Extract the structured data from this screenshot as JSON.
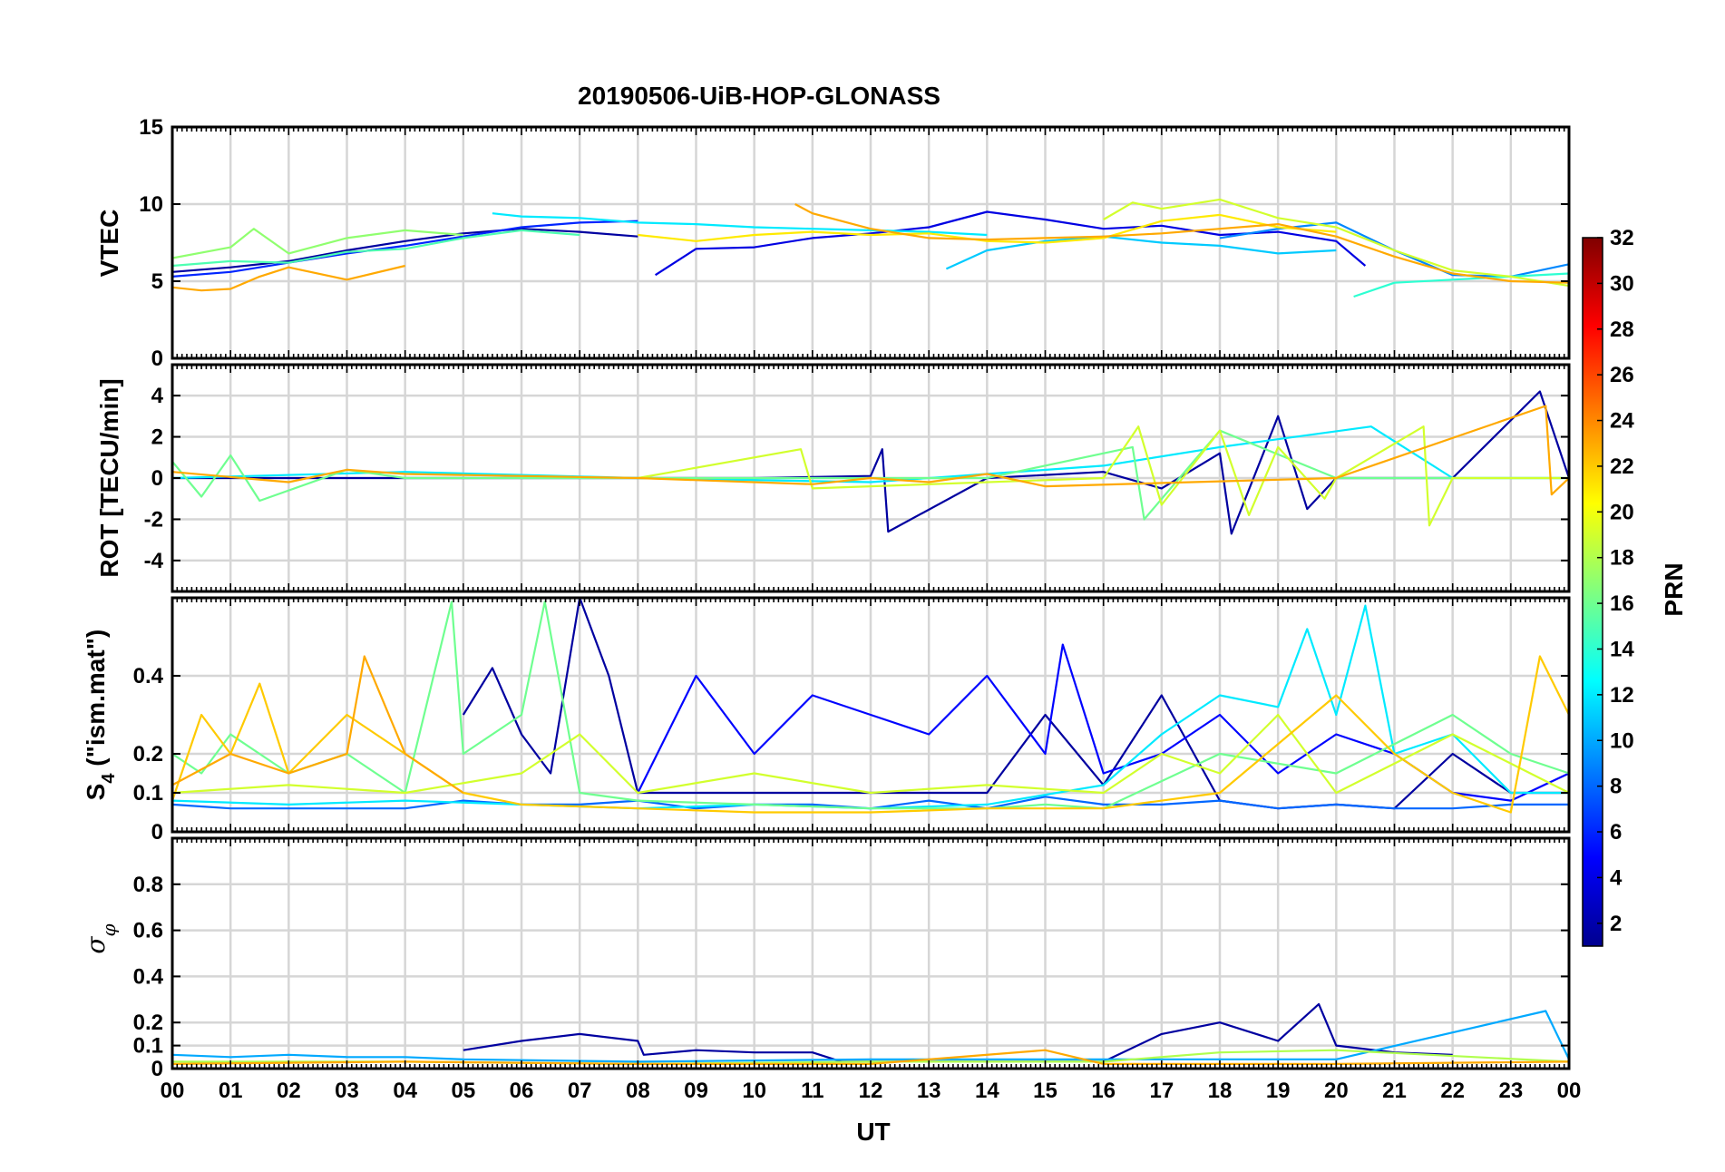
{
  "chart_data": {
    "type": "line",
    "title": "20190506-UiB-HOP-GLONASS",
    "xlabel": "UT",
    "x_ticks": [
      "00",
      "01",
      "02",
      "03",
      "04",
      "05",
      "06",
      "07",
      "08",
      "09",
      "10",
      "11",
      "12",
      "13",
      "14",
      "15",
      "16",
      "17",
      "18",
      "19",
      "20",
      "21",
      "22",
      "23",
      "00"
    ],
    "xlim_hours": [
      0,
      24
    ],
    "grid": true,
    "colorbar": {
      "label": "PRN",
      "range": [
        1,
        32
      ],
      "ticks": [
        "2",
        "4",
        "6",
        "8",
        "10",
        "12",
        "14",
        "16",
        "18",
        "20",
        "22",
        "24",
        "26",
        "28",
        "30",
        "32"
      ],
      "colormap": "jet"
    },
    "panels": [
      {
        "id": "vtec",
        "ylabel": "VTEC",
        "ylim": [
          0,
          15
        ],
        "yticks": [
          "0",
          "5",
          "10",
          "15"
        ],
        "series": [
          {
            "prn": 2,
            "x": [
              0,
              1,
              2,
              3,
              4,
              5,
              6,
              7,
              8
            ],
            "values": [
              5.6,
              5.9,
              6.3,
              7.0,
              7.6,
              8.1,
              8.4,
              8.2,
              7.9
            ]
          },
          {
            "prn": 4,
            "x": [
              8.3,
              9,
              10,
              11,
              12,
              13,
              14,
              15,
              16,
              17,
              18,
              19,
              20,
              20.5
            ],
            "values": [
              5.4,
              7.1,
              7.2,
              7.8,
              8.1,
              8.5,
              9.5,
              9.0,
              8.4,
              8.6,
              8.0,
              8.2,
              7.6,
              6.0
            ]
          },
          {
            "prn": 6,
            "x": [
              0,
              1,
              2,
              3,
              4,
              5,
              6,
              7,
              8
            ],
            "values": [
              5.3,
              5.6,
              6.2,
              6.8,
              7.3,
              7.9,
              8.5,
              8.8,
              8.9
            ]
          },
          {
            "prn": 9,
            "x": [
              18,
              19,
              20,
              21,
              22,
              23,
              24
            ],
            "values": [
              7.8,
              8.4,
              8.8,
              7.0,
              5.4,
              5.3,
              6.1
            ]
          },
          {
            "prn": 11,
            "x": [
              13.3,
              14,
              15,
              16,
              17,
              18,
              19,
              20
            ],
            "values": [
              5.8,
              7.0,
              7.6,
              7.9,
              7.5,
              7.3,
              6.8,
              7.0
            ]
          },
          {
            "prn": 12,
            "x": [
              5.5,
              6,
              7,
              8,
              9,
              10,
              11,
              12,
              13,
              14
            ],
            "values": [
              9.4,
              9.2,
              9.1,
              8.8,
              8.7,
              8.5,
              8.4,
              8.3,
              8.2,
              8.0
            ]
          },
          {
            "prn": 14,
            "x": [
              20.3,
              21,
              22,
              23,
              24
            ],
            "values": [
              4.0,
              4.9,
              5.1,
              5.3,
              5.5
            ]
          },
          {
            "prn": 15,
            "x": [
              0,
              1,
              2,
              3,
              4,
              5,
              6,
              7
            ],
            "values": [
              6.0,
              6.3,
              6.2,
              6.9,
              7.1,
              7.8,
              8.3,
              8.0
            ]
          },
          {
            "prn": 17,
            "x": [
              0,
              1,
              1.4,
              2,
              3,
              4,
              5
            ],
            "values": [
              6.5,
              7.2,
              8.4,
              6.8,
              7.8,
              8.3,
              8.0
            ]
          },
          {
            "prn": 19,
            "x": [
              16,
              16.5,
              17,
              18,
              19,
              20,
              21,
              22,
              23,
              24
            ],
            "values": [
              9.0,
              10.1,
              9.7,
              10.3,
              9.1,
              8.5,
              7.0,
              5.7,
              5.3,
              4.7
            ]
          },
          {
            "prn": 21,
            "x": [
              8,
              9,
              10,
              11,
              12,
              13,
              14,
              15,
              16,
              17,
              18,
              19,
              20
            ],
            "values": [
              8.0,
              7.6,
              8.0,
              8.2,
              8.0,
              8.1,
              7.6,
              7.5,
              7.8,
              8.9,
              9.3,
              8.5,
              8.2
            ]
          },
          {
            "prn": 23,
            "x": [
              0,
              0.5,
              1,
              1.5,
              2,
              3,
              4
            ],
            "values": [
              4.6,
              4.4,
              4.5,
              5.3,
              5.9,
              5.1,
              6.0
            ]
          },
          {
            "prn": 23,
            "x": [
              10.7,
              11,
              12,
              13,
              14,
              15,
              16,
              17,
              18,
              19,
              20,
              21,
              22,
              23,
              24
            ],
            "values": [
              10.0,
              9.4,
              8.4,
              7.8,
              7.7,
              7.8,
              7.9,
              8.1,
              8.4,
              8.7,
              7.9,
              6.6,
              5.5,
              5.0,
              4.9
            ]
          }
        ]
      },
      {
        "id": "rot",
        "ylabel": "ROT [TECU/min]",
        "ylim": [
          -5.5,
          5.5
        ],
        "yticks": [
          "4",
          "2",
          "0",
          "-2",
          "-4"
        ],
        "series": [
          {
            "prn": 2,
            "x": [
              0,
              2,
              4,
              6,
              8,
              10,
              12,
              12.2,
              12.3,
              14,
              16,
              17,
              18,
              18.2,
              19,
              19.5,
              20,
              22,
              23.5,
              24
            ],
            "values": [
              0,
              0,
              0,
              0,
              0,
              0,
              0.1,
              1.4,
              -2.6,
              0,
              0.3,
              -0.5,
              1.2,
              -2.7,
              3.0,
              -1.5,
              0,
              0,
              4.2,
              0
            ]
          },
          {
            "prn": 12,
            "x": [
              0,
              4,
              8,
              12,
              16,
              18,
              20.6,
              22,
              24
            ],
            "values": [
              0,
              0.3,
              0,
              -0.2,
              0.6,
              1.5,
              2.5,
              0,
              0
            ]
          },
          {
            "prn": 16,
            "x": [
              0,
              0.5,
              1,
              1.5,
              3,
              4,
              6,
              8,
              10,
              14,
              16.5,
              16.7,
              18,
              20,
              24
            ],
            "values": [
              0.8,
              -0.9,
              1.1,
              -1.1,
              0.4,
              0,
              0,
              0,
              0,
              0,
              1.5,
              -2.0,
              2.3,
              0,
              0
            ]
          },
          {
            "prn": 19,
            "x": [
              8,
              10.8,
              11,
              16,
              16.6,
              17,
              18,
              18.5,
              19,
              19.8,
              20,
              21.5,
              21.6,
              22,
              24
            ],
            "values": [
              0,
              1.4,
              -0.5,
              0,
              2.5,
              -1.3,
              2.3,
              -1.8,
              1.5,
              -1.0,
              0,
              2.5,
              -2.3,
              0,
              0
            ]
          },
          {
            "prn": 23,
            "x": [
              0,
              2,
              3,
              4,
              8,
              11,
              12,
              13,
              14,
              15,
              20,
              23.6,
              23.7,
              24
            ],
            "values": [
              0.3,
              -0.2,
              0.4,
              0.2,
              0,
              -0.3,
              0,
              -0.2,
              0.2,
              -0.4,
              0,
              3.5,
              -0.8,
              0
            ]
          }
        ]
      },
      {
        "id": "s4",
        "ylabel": "S4 (\"ism.mat\")",
        "ylim": [
          0,
          0.6
        ],
        "yticks": [
          "0",
          "0.1",
          "0.2",
          "0.4"
        ],
        "series": [
          {
            "prn": 2,
            "x": [
              5,
              5.5,
              6,
              6.5,
              7,
              7.5,
              8,
              14,
              15,
              16,
              17,
              18,
              19,
              20,
              21,
              22,
              23,
              24
            ],
            "values": [
              0.3,
              0.42,
              0.25,
              0.15,
              0.6,
              0.4,
              0.1,
              0.1,
              0.3,
              0.12,
              0.35,
              0.08,
              0.06,
              0.07,
              0.06,
              0.2,
              0.1,
              0.1
            ]
          },
          {
            "prn": 5,
            "x": [
              8,
              9,
              10,
              11,
              12,
              13,
              14,
              15,
              15.3,
              16,
              17,
              18,
              19,
              20,
              21,
              22,
              23,
              24
            ],
            "values": [
              0.1,
              0.4,
              0.2,
              0.35,
              0.3,
              0.25,
              0.4,
              0.2,
              0.48,
              0.15,
              0.2,
              0.3,
              0.15,
              0.25,
              0.2,
              0.1,
              0.08,
              0.15
            ]
          },
          {
            "prn": 8,
            "x": [
              0,
              1,
              2,
              3,
              4,
              5,
              6,
              7,
              8,
              9,
              10,
              11,
              12,
              13,
              14,
              15,
              16,
              17,
              18,
              19,
              20,
              21,
              22,
              23,
              24
            ],
            "values": [
              0.07,
              0.06,
              0.06,
              0.06,
              0.06,
              0.08,
              0.07,
              0.07,
              0.08,
              0.06,
              0.07,
              0.07,
              0.06,
              0.08,
              0.06,
              0.09,
              0.07,
              0.07,
              0.08,
              0.06,
              0.07,
              0.06,
              0.06,
              0.07,
              0.07
            ]
          },
          {
            "prn": 12,
            "x": [
              0,
              2,
              4,
              6,
              8,
              10,
              12,
              14,
              16,
              17,
              18,
              19,
              19.5,
              20,
              20.5,
              21,
              22,
              23,
              24
            ],
            "values": [
              0.08,
              0.07,
              0.08,
              0.07,
              0.06,
              0.07,
              0.06,
              0.07,
              0.12,
              0.25,
              0.35,
              0.32,
              0.52,
              0.3,
              0.58,
              0.2,
              0.25,
              0.1,
              0.1
            ]
          },
          {
            "prn": 16,
            "x": [
              0,
              0.5,
              1,
              2,
              3,
              4,
              4.8,
              5,
              6,
              6.4,
              7,
              8,
              10,
              12,
              14,
              15,
              16,
              18,
              20,
              22,
              23,
              24
            ],
            "values": [
              0.2,
              0.15,
              0.25,
              0.15,
              0.2,
              0.1,
              0.59,
              0.2,
              0.3,
              0.59,
              0.1,
              0.08,
              0.07,
              0.06,
              0.06,
              0.07,
              0.06,
              0.2,
              0.15,
              0.3,
              0.2,
              0.15
            ]
          },
          {
            "prn": 19,
            "x": [
              0,
              2,
              4,
              6,
              7,
              8,
              10,
              12,
              14,
              16,
              17,
              18,
              19,
              20,
              22,
              24
            ],
            "values": [
              0.1,
              0.12,
              0.1,
              0.15,
              0.25,
              0.1,
              0.15,
              0.1,
              0.12,
              0.1,
              0.2,
              0.15,
              0.3,
              0.1,
              0.25,
              0.1
            ]
          },
          {
            "prn": 22,
            "x": [
              0,
              0.5,
              1,
              1.5,
              2,
              3,
              4,
              5,
              6,
              8,
              10,
              12,
              14,
              16,
              18,
              20,
              21,
              22,
              23,
              23.5,
              24
            ],
            "values": [
              0.08,
              0.3,
              0.2,
              0.38,
              0.15,
              0.3,
              0.2,
              0.1,
              0.07,
              0.06,
              0.05,
              0.05,
              0.06,
              0.06,
              0.1,
              0.35,
              0.2,
              0.1,
              0.05,
              0.45,
              0.3
            ]
          },
          {
            "prn": 23,
            "x": [
              0,
              1,
              2,
              3,
              3.3,
              4,
              5
            ],
            "values": [
              0.12,
              0.2,
              0.15,
              0.2,
              0.45,
              0.2,
              0.1
            ]
          }
        ]
      },
      {
        "id": "sigma_phi",
        "ylabel": "σφ",
        "ylim": [
          0,
          1
        ],
        "yticks": [
          "0",
          "0.1",
          "0.2",
          "0.4",
          "0.6",
          "0.8"
        ],
        "series": [
          {
            "prn": 2,
            "x": [
              5,
              6,
              7,
              8,
              8.1,
              9,
              10,
              11,
              11.5,
              16,
              17,
              18,
              19,
              19.7,
              20,
              21,
              22
            ],
            "values": [
              0.08,
              0.12,
              0.15,
              0.12,
              0.06,
              0.08,
              0.07,
              0.07,
              0.03,
              0.03,
              0.15,
              0.2,
              0.12,
              0.28,
              0.1,
              0.07,
              0.06
            ]
          },
          {
            "prn": 10,
            "x": [
              0,
              1,
              2,
              3,
              4,
              5,
              8,
              12,
              16,
              20,
              23.6,
              24
            ],
            "values": [
              0.06,
              0.05,
              0.06,
              0.05,
              0.05,
              0.04,
              0.03,
              0.04,
              0.04,
              0.04,
              0.25,
              0.04
            ]
          },
          {
            "prn": 18,
            "x": [
              0,
              4,
              8,
              12,
              16,
              18,
              20,
              24
            ],
            "values": [
              0.03,
              0.03,
              0.02,
              0.03,
              0.03,
              0.07,
              0.08,
              0.03
            ]
          },
          {
            "prn": 23,
            "x": [
              0,
              4,
              8,
              12,
              15,
              16,
              20,
              24
            ],
            "values": [
              0.02,
              0.03,
              0.02,
              0.02,
              0.08,
              0.02,
              0.02,
              0.03
            ]
          }
        ]
      }
    ]
  }
}
